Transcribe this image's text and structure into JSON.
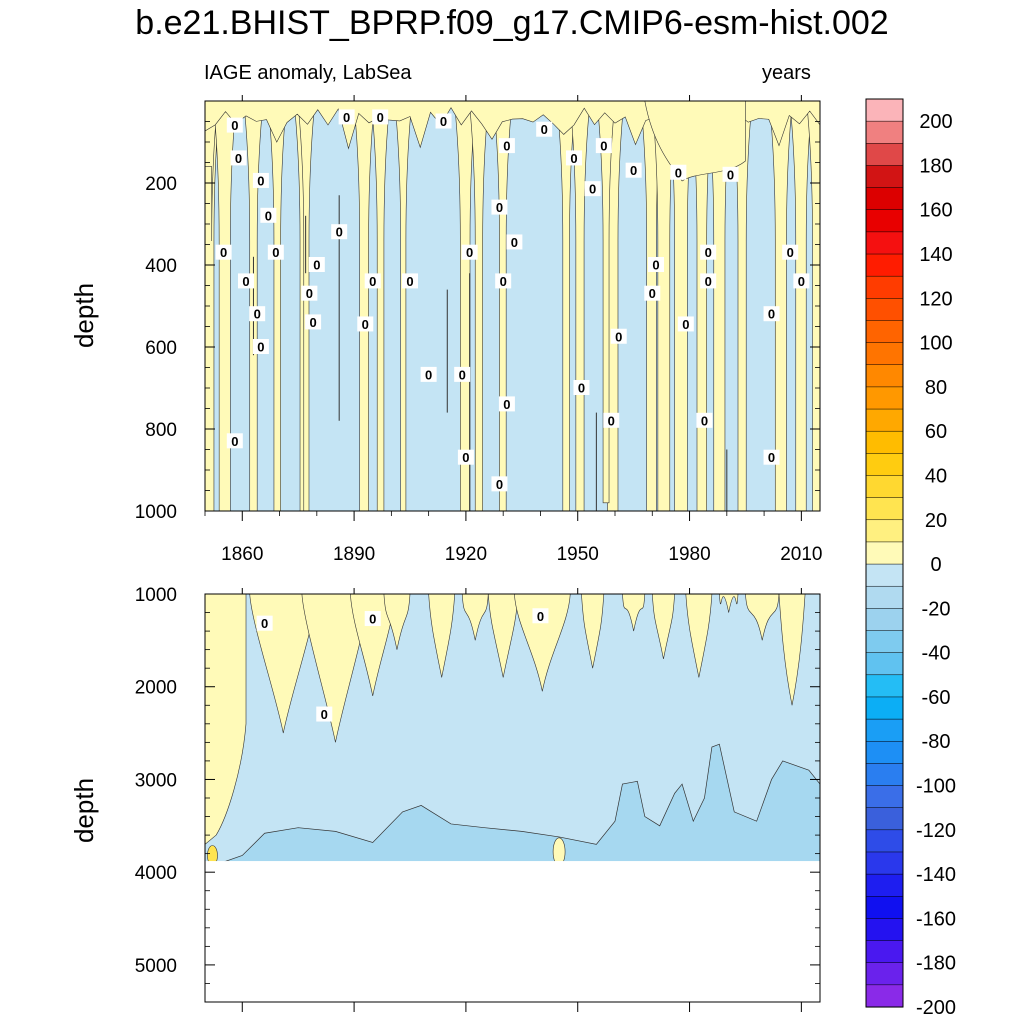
{
  "chart_data": {
    "type": "heatmap",
    "title": "b.e21.BHIST_BPRP.f09_g17.CMIP6-esm-hist.002",
    "subtitle_left": "IAGE anomaly, LabSea",
    "subtitle_right": "years",
    "xlabel": "",
    "ylabel": "depth",
    "xlim": [
      1850,
      2015
    ],
    "x_ticks": [
      "1860",
      "1890",
      "1920",
      "1950",
      "1980",
      "2010"
    ],
    "x_tick_values": [
      1860,
      1890,
      1920,
      1950,
      1980,
      2010
    ],
    "panels": [
      {
        "name": "upper",
        "ylim": [
          0,
          1000
        ],
        "y_ticks": [
          "200",
          "400",
          "600",
          "800",
          "1000"
        ],
        "y_tick_values": [
          200,
          400,
          600,
          800,
          1000
        ],
        "ylabel": "depth",
        "contour_labels": [
          "0",
          "0",
          "0",
          "0",
          "0",
          "0",
          "0",
          "0",
          "0",
          "0",
          "0",
          "0",
          "0",
          "0",
          "0",
          "0",
          "0",
          "0",
          "0",
          "0",
          "0",
          "0",
          "0",
          "0",
          "0",
          "0",
          "0",
          "0",
          "0",
          "0",
          "0",
          "0",
          "0",
          "0",
          "0",
          "0",
          "0",
          "0",
          "0",
          "0",
          "0",
          "0",
          "0",
          "0",
          "0",
          "0",
          "0",
          "0",
          "0",
          "0"
        ]
      },
      {
        "name": "lower",
        "ylim": [
          1000,
          5400
        ],
        "y_ticks": [
          "1000",
          "2000",
          "3000",
          "4000",
          "5000"
        ],
        "y_tick_values": [
          1000,
          2000,
          3000,
          4000,
          5000
        ],
        "ylabel": "depth",
        "contour_labels": [
          "0",
          "0",
          "0",
          "0"
        ]
      }
    ],
    "colorbar": {
      "levels": [
        "200",
        "180",
        "160",
        "140",
        "120",
        "100",
        "80",
        "60",
        "40",
        "20",
        "0",
        "-20",
        "-40",
        "-60",
        "-80",
        "-100",
        "-120",
        "-140",
        "-160",
        "-180",
        "-200"
      ],
      "level_values": [
        200,
        180,
        160,
        140,
        120,
        100,
        80,
        60,
        40,
        20,
        0,
        -20,
        -40,
        -60,
        -80,
        -100,
        -120,
        -140,
        -160,
        -180,
        -200
      ],
      "colors_top_to_bottom": [
        "#fbb4b9",
        "#f08080",
        "#e04848",
        "#d21414",
        "#dc0000",
        "#e80000",
        "#f51010",
        "#ff1c00",
        "#ff3c00",
        "#ff5000",
        "#ff6400",
        "#ff7400",
        "#ff8800",
        "#ff9800",
        "#ffa800",
        "#ffbc00",
        "#ffcc10",
        "#ffd830",
        "#ffe450",
        "#fff080",
        "#fffab8",
        "#c4e4f4",
        "#b0daf0",
        "#9cd2ee",
        "#7ecbef",
        "#60c2f0",
        "#24bdf5",
        "#0caef5",
        "#1a9ef5",
        "#1d8ff5",
        "#2a7ef0",
        "#3a6ee8",
        "#3a60dc",
        "#2e4ce8",
        "#2a38ec",
        "#1e1ef0",
        "#1010f0",
        "#2412f0",
        "#4a18f0",
        "#6a22ec",
        "#8a2ae8"
      ]
    },
    "color_bands": {
      "zero_to_20": "#fffab8",
      "minus20_to_zero": "#c4e4f4",
      "minus40_to_minus20": "#a6d8f0",
      "no_data": "#ffffff"
    }
  }
}
